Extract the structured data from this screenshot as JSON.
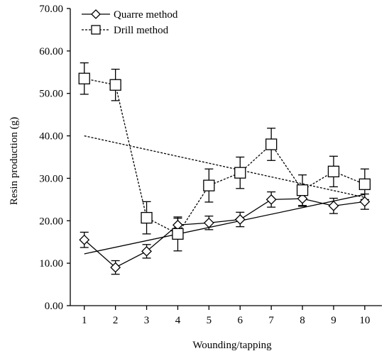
{
  "chart_data": {
    "type": "line",
    "xlabel": "Wounding/tapping",
    "ylabel": "Resin production (g)",
    "x": [
      1,
      2,
      3,
      4,
      5,
      6,
      7,
      8,
      9,
      10
    ],
    "xlim": [
      0.55,
      10.55
    ],
    "ylim": [
      0,
      70
    ],
    "yticks": [
      "0.00",
      "10.00",
      "20.00",
      "30.00",
      "40.00",
      "50.00",
      "60.00",
      "70.00"
    ],
    "xticks": [
      "1",
      "2",
      "3",
      "4",
      "5",
      "6",
      "7",
      "8",
      "9",
      "10"
    ],
    "grid": false,
    "legend_position": "top-left",
    "series": [
      {
        "name": "Quarre method",
        "marker": "diamond",
        "line_style": "solid",
        "values": [
          15.5,
          9.0,
          12.8,
          19.0,
          19.5,
          20.3,
          25.0,
          25.2,
          23.5,
          24.5
        ],
        "errors": [
          1.8,
          1.6,
          1.6,
          1.6,
          1.6,
          1.7,
          1.8,
          1.8,
          1.8,
          1.8
        ],
        "trend": {
          "x": [
            1,
            10
          ],
          "y": [
            12.2,
            26.2
          ],
          "line_style": "solid"
        }
      },
      {
        "name": "Drill method",
        "marker": "square",
        "line_style": "dotted",
        "values": [
          53.5,
          52.0,
          20.7,
          16.9,
          28.3,
          31.3,
          38.0,
          27.2,
          31.6,
          28.6
        ],
        "errors": [
          3.7,
          3.7,
          3.8,
          4.0,
          3.9,
          3.7,
          3.8,
          3.6,
          3.6,
          3.6
        ],
        "trend": {
          "x": [
            1,
            10
          ],
          "y": [
            40.0,
            25.5
          ],
          "line_style": "dotted"
        }
      }
    ]
  }
}
